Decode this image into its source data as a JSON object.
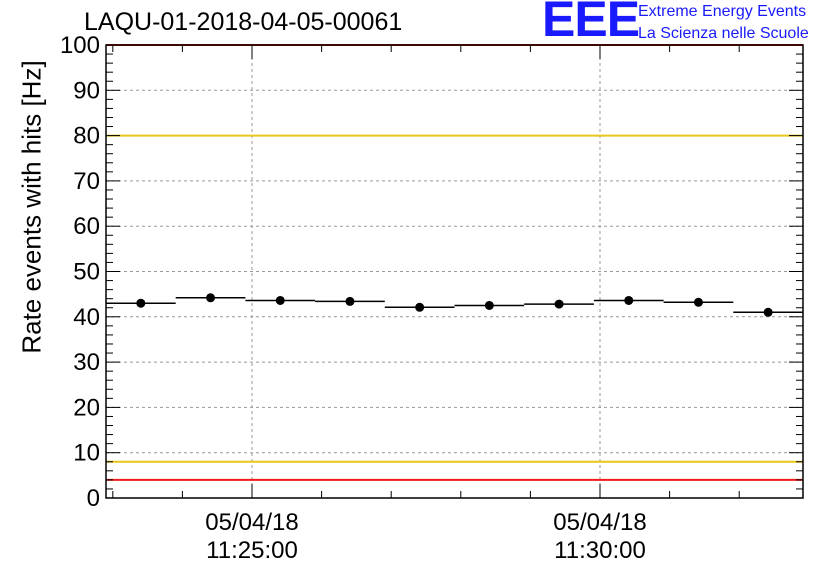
{
  "chart_data": {
    "type": "scatter",
    "title": "LAQU-01-2018-04-05-00061",
    "ylabel": "Rate events with hits [Hz]",
    "xlabel": "",
    "ylim": [
      0,
      100
    ],
    "yticks": [
      "0",
      "10",
      "20",
      "30",
      "40",
      "50",
      "60",
      "70",
      "80",
      "90",
      "100"
    ],
    "xticks": [
      {
        "date": "05/04/18",
        "time": "11:25:00"
      },
      {
        "date": "05/04/18",
        "time": "11:30:00"
      }
    ],
    "grid": true,
    "points": [
      43.0,
      44.2,
      43.6,
      43.4,
      42.1,
      42.5,
      42.8,
      43.6,
      43.2,
      41.0
    ],
    "reference_lines": [
      {
        "value": 100,
        "color": "#ee1c1c"
      },
      {
        "value": 80,
        "color": "#e8c619"
      },
      {
        "value": 8,
        "color": "#e8c619"
      },
      {
        "value": 4,
        "color": "#ee1c1c"
      }
    ]
  },
  "logo": {
    "mark": "EEE",
    "line1": "Extreme Energy Events",
    "line2": "La Scienza nelle Scuole"
  }
}
